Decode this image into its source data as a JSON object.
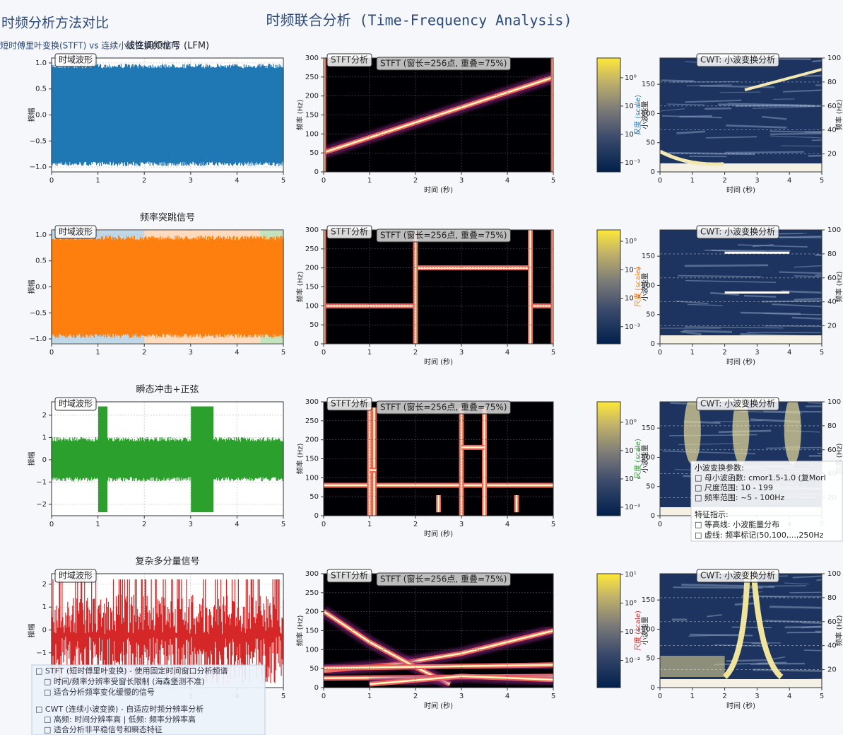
{
  "title": "时频联合分析 (Time-Frequency Analysis)",
  "header": {
    "title": "时频分析方法对比",
    "subtitle": "短时傅里叶变换(STFT) vs 连续小波变换(CWT)"
  },
  "labels": {
    "wave_box": "时域波形",
    "amp": "振幅",
    "stft_box": "STFT分析",
    "stft_note": "STFT (窗长=256点, 重叠=75%)",
    "time": "时间 (秒)",
    "freq": "频率 (Hz)",
    "cwt_box": "CWT: 小波变换分析",
    "scale": "尺度 (scale)",
    "energy": "小波能量"
  },
  "xlim": [
    0,
    5
  ],
  "xticks": [
    0,
    1,
    2,
    3,
    4,
    5
  ],
  "stft": {
    "ylim": [
      0,
      300
    ],
    "yticks": [
      0,
      50,
      100,
      150,
      200,
      250,
      300
    ]
  },
  "cwt": {
    "ylim": [
      0,
      195
    ],
    "yticks": [
      0,
      50,
      100,
      150
    ],
    "y2lim": [
      5,
      100
    ],
    "y2ticks": [
      20,
      40,
      60,
      80,
      100
    ]
  },
  "rows": [
    {
      "title": "线性调频信号 (LFM)",
      "color": "#1f77b4",
      "wave_ylim": [
        -1.095,
        1.095
      ],
      "wave_yticks": [
        {
          "value": -1,
          "label": "−1.0"
        },
        {
          "value": -0.5,
          "label": "−0.5"
        },
        {
          "value": 0,
          "label": "0.0"
        },
        {
          "value": 0.5,
          "label": "0.5"
        },
        {
          "value": 1,
          "label": "1.0"
        }
      ],
      "cbar_lim": [
        0.00047,
        5
      ],
      "cbar_ticks": [
        {
          "value": 1,
          "label": "10⁰"
        },
        {
          "value": 0.1,
          "label": "10⁻¹"
        },
        {
          "value": 0.01,
          "label": "10⁻²"
        },
        {
          "value": 0.001,
          "label": "10⁻³"
        }
      ]
    },
    {
      "title": "频率突跳信号",
      "color": "#ff7f0e",
      "wave_ylim": [
        -1.095,
        1.095
      ],
      "wave_yticks": [
        {
          "value": -1,
          "label": "−1.0"
        },
        {
          "value": -0.5,
          "label": "−0.5"
        },
        {
          "value": 0,
          "label": "0.0"
        },
        {
          "value": 0.5,
          "label": "0.5"
        },
        {
          "value": 1,
          "label": "1.0"
        }
      ],
      "cbar_lim": [
        0.00025,
        2.5
      ],
      "cbar_ticks": [
        {
          "value": 1,
          "label": "10⁰"
        },
        {
          "value": 0.1,
          "label": "10⁻¹"
        },
        {
          "value": 0.01,
          "label": "10⁻²"
        },
        {
          "value": 0.001,
          "label": "10⁻³"
        }
      ]
    },
    {
      "title": "瞬态冲击+正弦",
      "color": "#2ca02c",
      "wave_ylim": [
        -2.51,
        2.6
      ],
      "wave_yticks": [
        {
          "value": -2,
          "label": "−2"
        },
        {
          "value": -1,
          "label": "−1"
        },
        0,
        1,
        2
      ],
      "cbar_lim": [
        0.0005,
        5.3
      ],
      "cbar_ticks": [
        {
          "value": 1,
          "label": "10⁰"
        },
        {
          "value": 0.1,
          "label": "10⁻¹"
        },
        {
          "value": 0.01,
          "label": "10⁻²"
        },
        {
          "value": 0.001,
          "label": "10⁻³"
        }
      ]
    },
    {
      "title": "复杂多分量信号",
      "color": "#d62728",
      "wave_ylim": [
        -2.52,
        2.46
      ],
      "wave_yticks": [
        {
          "value": -1,
          "label": "−1"
        },
        0,
        1,
        2
      ],
      "cbar_lim": [
        0.00112,
        10.6
      ],
      "cbar_ticks": [
        {
          "value": 10,
          "label": "10¹"
        },
        {
          "value": 1,
          "label": "10⁰"
        },
        {
          "value": 0.1,
          "label": "10⁻¹"
        },
        {
          "value": 0.01,
          "label": "10⁻²"
        }
      ]
    }
  ],
  "cwt_info": {
    "params_title": "小波变换参数:",
    "params": [
      "□ 母小波函数: cmor1.5-1.0 (复Morl",
      "□ 尺度范围: 10 - 199",
      "□ 频率范围: ~5 - 100Hz"
    ],
    "features_title": "特征指示:",
    "features": [
      "□ 等高线: 小波能量分布",
      "□ 虚线: 频率标记(50,100,...,250Hz"
    ]
  },
  "notes": {
    "stft": [
      "□ STFT (短时傅里叶变换) - 使用固定时间窗口分析频谱",
      "□ 时间/频率分辨率受窗长限制 (海森堡测不准)",
      "□ 适合分析频率变化缓慢的信号"
    ],
    "cwt": [
      "□ CWT (连续小波变换) - 自适应时频分辨率分析",
      "□ 高频: 时间分辨率高 | 低频: 频率分辨率高",
      "□ 适合分析非平稳信号和瞬态特征"
    ]
  }
}
